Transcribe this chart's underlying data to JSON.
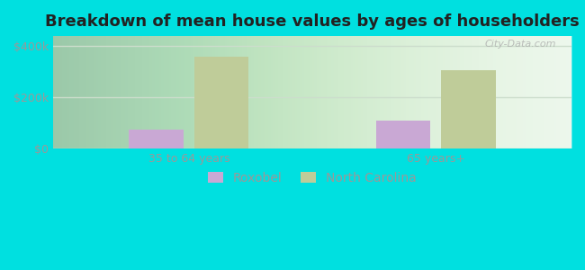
{
  "title": "Breakdown of mean house values by ages of householders",
  "categories": [
    "35 to 64 years",
    "65 years+"
  ],
  "series": [
    {
      "name": "Roxobel",
      "values": [
        75000,
        110000
      ],
      "color": "#c9a8d4"
    },
    {
      "name": "North Carolina",
      "values": [
        360000,
        305000
      ],
      "color": "#bfcc99"
    }
  ],
  "ylim": [
    0,
    440000
  ],
  "yticks": [
    0,
    200000,
    400000
  ],
  "ytick_labels": [
    "$0",
    "$200k",
    "$400k"
  ],
  "background_color": "#00e0e0",
  "title_fontsize": 13,
  "legend_fontsize": 10,
  "tick_fontsize": 9,
  "bar_width": 0.22,
  "watermark": "City-Data.com",
  "tick_color": "#999999",
  "grid_color": "#ccddcc",
  "plot_bg_left": "#d8eeda",
  "plot_bg_right": "#f8fff8"
}
